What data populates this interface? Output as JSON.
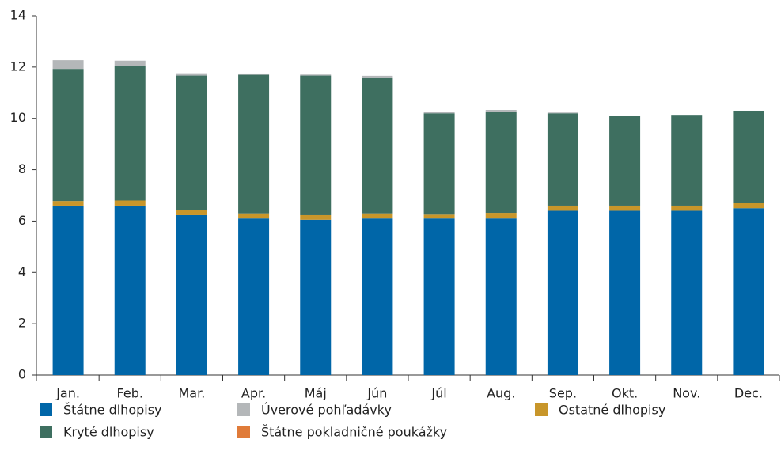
{
  "chart_data": {
    "type": "stacked_bar",
    "categories": [
      "Jan.",
      "Feb.",
      "Mar.",
      "Apr.",
      "Máj",
      "Jún",
      "Júl",
      "Aug.",
      "Sep.",
      "Okt.",
      "Nov.",
      "Dec."
    ],
    "series": [
      {
        "name": "Štátne dlhopisy",
        "color": "#0066a8",
        "values": [
          6.6,
          6.6,
          6.23,
          6.1,
          6.05,
          6.1,
          6.1,
          6.1,
          6.4,
          6.4,
          6.4,
          6.5
        ]
      },
      {
        "name": "Ostatné dlhopisy",
        "color": "#c8962a",
        "values": [
          0.18,
          0.2,
          0.19,
          0.2,
          0.18,
          0.2,
          0.15,
          0.22,
          0.2,
          0.2,
          0.2,
          0.2
        ]
      },
      {
        "name": "Kryté dlhopisy",
        "color": "#3e6f60",
        "values": [
          5.15,
          5.25,
          5.25,
          5.4,
          5.44,
          5.3,
          3.95,
          3.95,
          3.6,
          3.5,
          3.54,
          3.6
        ]
      },
      {
        "name": "Úverové pohľadávky",
        "color": "#b4b7b9",
        "values": [
          0.34,
          0.2,
          0.09,
          0.05,
          0.04,
          0.06,
          0.06,
          0.06,
          0.03,
          0,
          0,
          0
        ]
      },
      {
        "name": "Štátne pokladničné poukážky",
        "color": "#e07b39",
        "values": [
          0,
          0,
          0,
          0,
          0,
          0,
          0,
          0,
          0,
          0,
          0,
          0
        ]
      }
    ],
    "ylim": [
      0,
      14
    ],
    "yticks": [
      0,
      2,
      4,
      6,
      8,
      10,
      12,
      14
    ],
    "grid": false
  }
}
